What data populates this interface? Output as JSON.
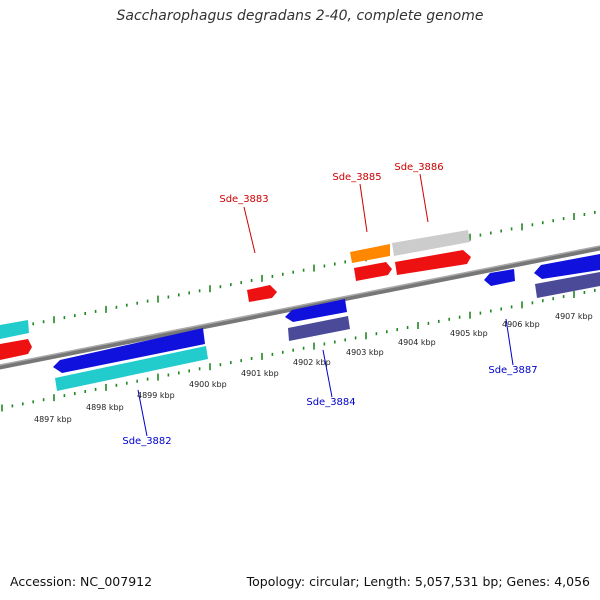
{
  "title": "Saccharophagus degradans 2-40, complete genome",
  "footer": {
    "accession": "Accession: NC_007912",
    "summary": "Topology: circular; Length: 5,057,531 bp; Genes: 4,056"
  },
  "scale": {
    "tick_labels": [
      "4897 kbp",
      "4898 kbp",
      "4899 kbp",
      "4900 kbp",
      "4901 kbp",
      "4902 kbp",
      "4903 kbp",
      "4904 kbp",
      "4905 kbp",
      "4906 kbp",
      "4907 kbp"
    ]
  },
  "gene_labels": {
    "forward": [
      "Sde_3883",
      "Sde_3885",
      "Sde_3886"
    ],
    "reverse": [
      "Sde_3882",
      "Sde_3884",
      "Sde_3887"
    ]
  },
  "colors": {
    "forward_gene": "#ee1111",
    "reverse_gene": "#1111dd",
    "cds_forward": "#cccccc",
    "cds_cyan": "#22cccc",
    "cds_slate": "#4a4a99",
    "orange_feature": "#ff8800",
    "backbone": "#888888",
    "tick": "#228822"
  }
}
